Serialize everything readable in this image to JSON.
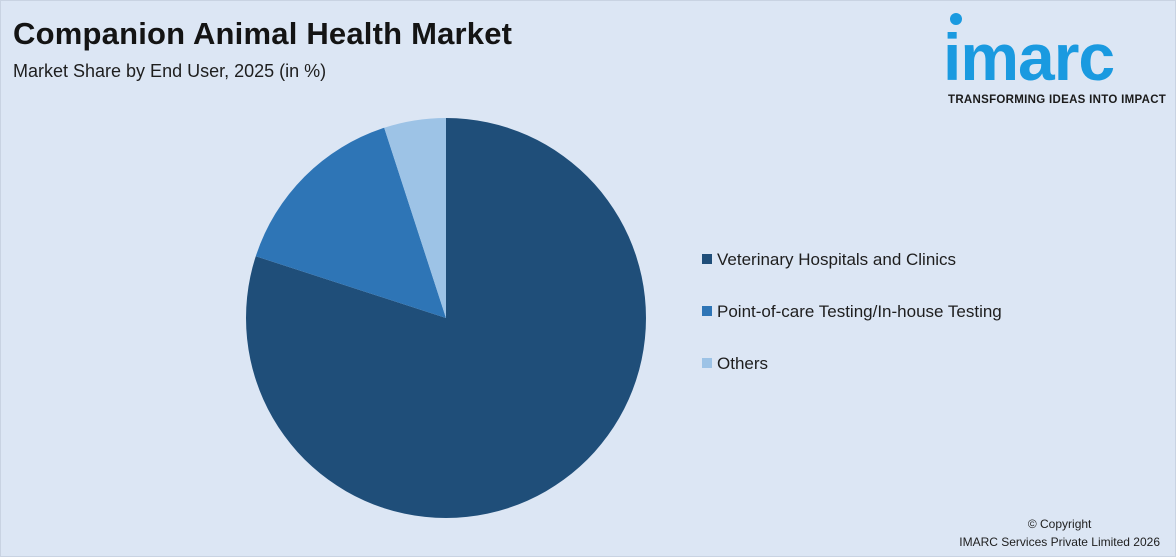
{
  "header": {
    "title": "Companion Animal Health Market",
    "subtitle": "Market Share by End User, 2025 (in %)"
  },
  "logo": {
    "word": "imarc",
    "tagline": "TRANSFORMING IDEAS INTO IMPACT",
    "color": "#1a9ae0"
  },
  "chart_data": {
    "type": "pie",
    "title": "Companion Animal Health Market",
    "subtitle": "Market Share by End User, 2025 (in %)",
    "categories": [
      "Veterinary Hospitals and Clinics",
      "Point-of-care Testing/In-house Testing",
      "Others"
    ],
    "values": [
      80,
      15,
      5
    ],
    "colors": [
      "#1f4e79",
      "#2e75b6",
      "#9dc3e6"
    ],
    "legend_position": "right",
    "start_angle": "top, clockwise"
  },
  "footer": {
    "line1": "© Copyright",
    "line2": "IMARC Services Private Limited 2026"
  }
}
